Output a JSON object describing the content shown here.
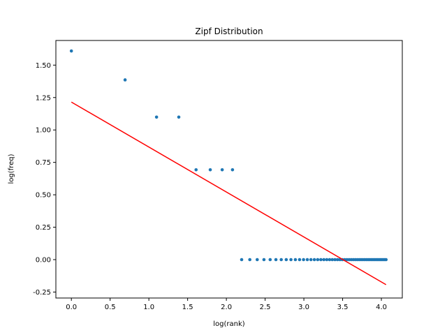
{
  "chart_data": {
    "type": "scatter",
    "title": "Zipf Distribution",
    "xlabel": "log(rank)",
    "ylabel": "log(freq)",
    "xlim": [
      -0.2,
      4.27
    ],
    "ylim": [
      -0.296,
      1.69
    ],
    "grid": false,
    "x_ticks": [
      "0.0",
      "0.5",
      "1.0",
      "1.5",
      "2.0",
      "2.5",
      "3.0",
      "3.5",
      "4.0"
    ],
    "y_ticks": [
      "-0.25",
      "0.00",
      "0.25",
      "0.50",
      "0.75",
      "1.00",
      "1.25",
      "1.50"
    ],
    "series": [
      {
        "kind": "scatter",
        "color": "#1f77b4",
        "points_summary": "log-rank vs log-frequency",
        "x": [
          0.0,
          0.693,
          1.099,
          1.386,
          1.609,
          1.792,
          1.946,
          2.079
        ],
        "y": [
          1.609,
          1.386,
          1.099,
          1.099,
          0.693,
          0.693,
          0.693,
          0.693
        ],
        "flat_ranks_from": 9,
        "flat_ranks_to": 58,
        "flat_y": 0.0
      },
      {
        "kind": "line",
        "color": "#ff0000",
        "x": [
          0.0,
          4.06
        ],
        "y": [
          1.215,
          -0.193
        ]
      }
    ]
  }
}
